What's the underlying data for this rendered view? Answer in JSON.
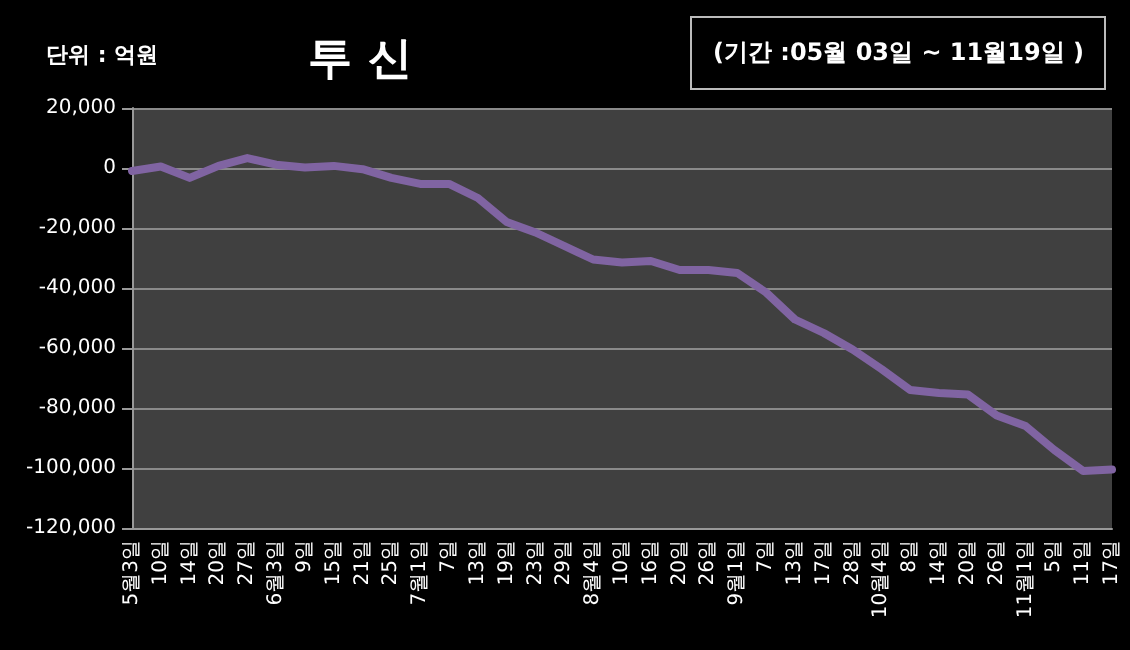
{
  "chart_data": {
    "type": "line",
    "title": "투 신",
    "ylabel": "단위 : 억원",
    "annotations": [
      "(기간 :05월 03일 ~ 11월19일 )"
    ],
    "categories": [
      "5월3일",
      "10일",
      "14일",
      "20일",
      "27일",
      "6월3일",
      "9일",
      "15일",
      "21일",
      "25일",
      "7월1일",
      "7일",
      "13일",
      "19일",
      "23일",
      "29일",
      "8월4일",
      "10일",
      "16일",
      "20일",
      "26일",
      "9월1일",
      "7일",
      "13일",
      "17일",
      "28일",
      "10월4일",
      "8일",
      "14일",
      "20일",
      "26일",
      "11월1일",
      "5일",
      "11일",
      "17일"
    ],
    "series": [
      {
        "color": "#8064a2",
        "values": [
          -1000,
          500,
          -3300,
          700,
          3300,
          1100,
          200,
          700,
          -400,
          -3300,
          -5300,
          -5300,
          -10000,
          -18000,
          -21500,
          -26000,
          -30500,
          -31500,
          -31000,
          -34000,
          -34000,
          -35000,
          -41500,
          -50500,
          -55000,
          -60500,
          -67000,
          -74000,
          -75000,
          -75500,
          -82500,
          -86000,
          -94000,
          -101000,
          -100500
        ]
      }
    ],
    "ylim": [
      -120000,
      20000
    ],
    "yticks": [
      {
        "value": -120000,
        "label": "-120,000"
      },
      {
        "value": -100000,
        "label": "-100,000"
      },
      {
        "value": -80000,
        "label": "-80,000"
      },
      {
        "value": -60000,
        "label": "-60,000"
      },
      {
        "value": -40000,
        "label": "-40,000"
      },
      {
        "value": -20000,
        "label": "-20,000"
      },
      0,
      {
        "value": 20000,
        "label": "20,000"
      }
    ],
    "grid": "y",
    "marker": "none",
    "line_style": "solid"
  }
}
